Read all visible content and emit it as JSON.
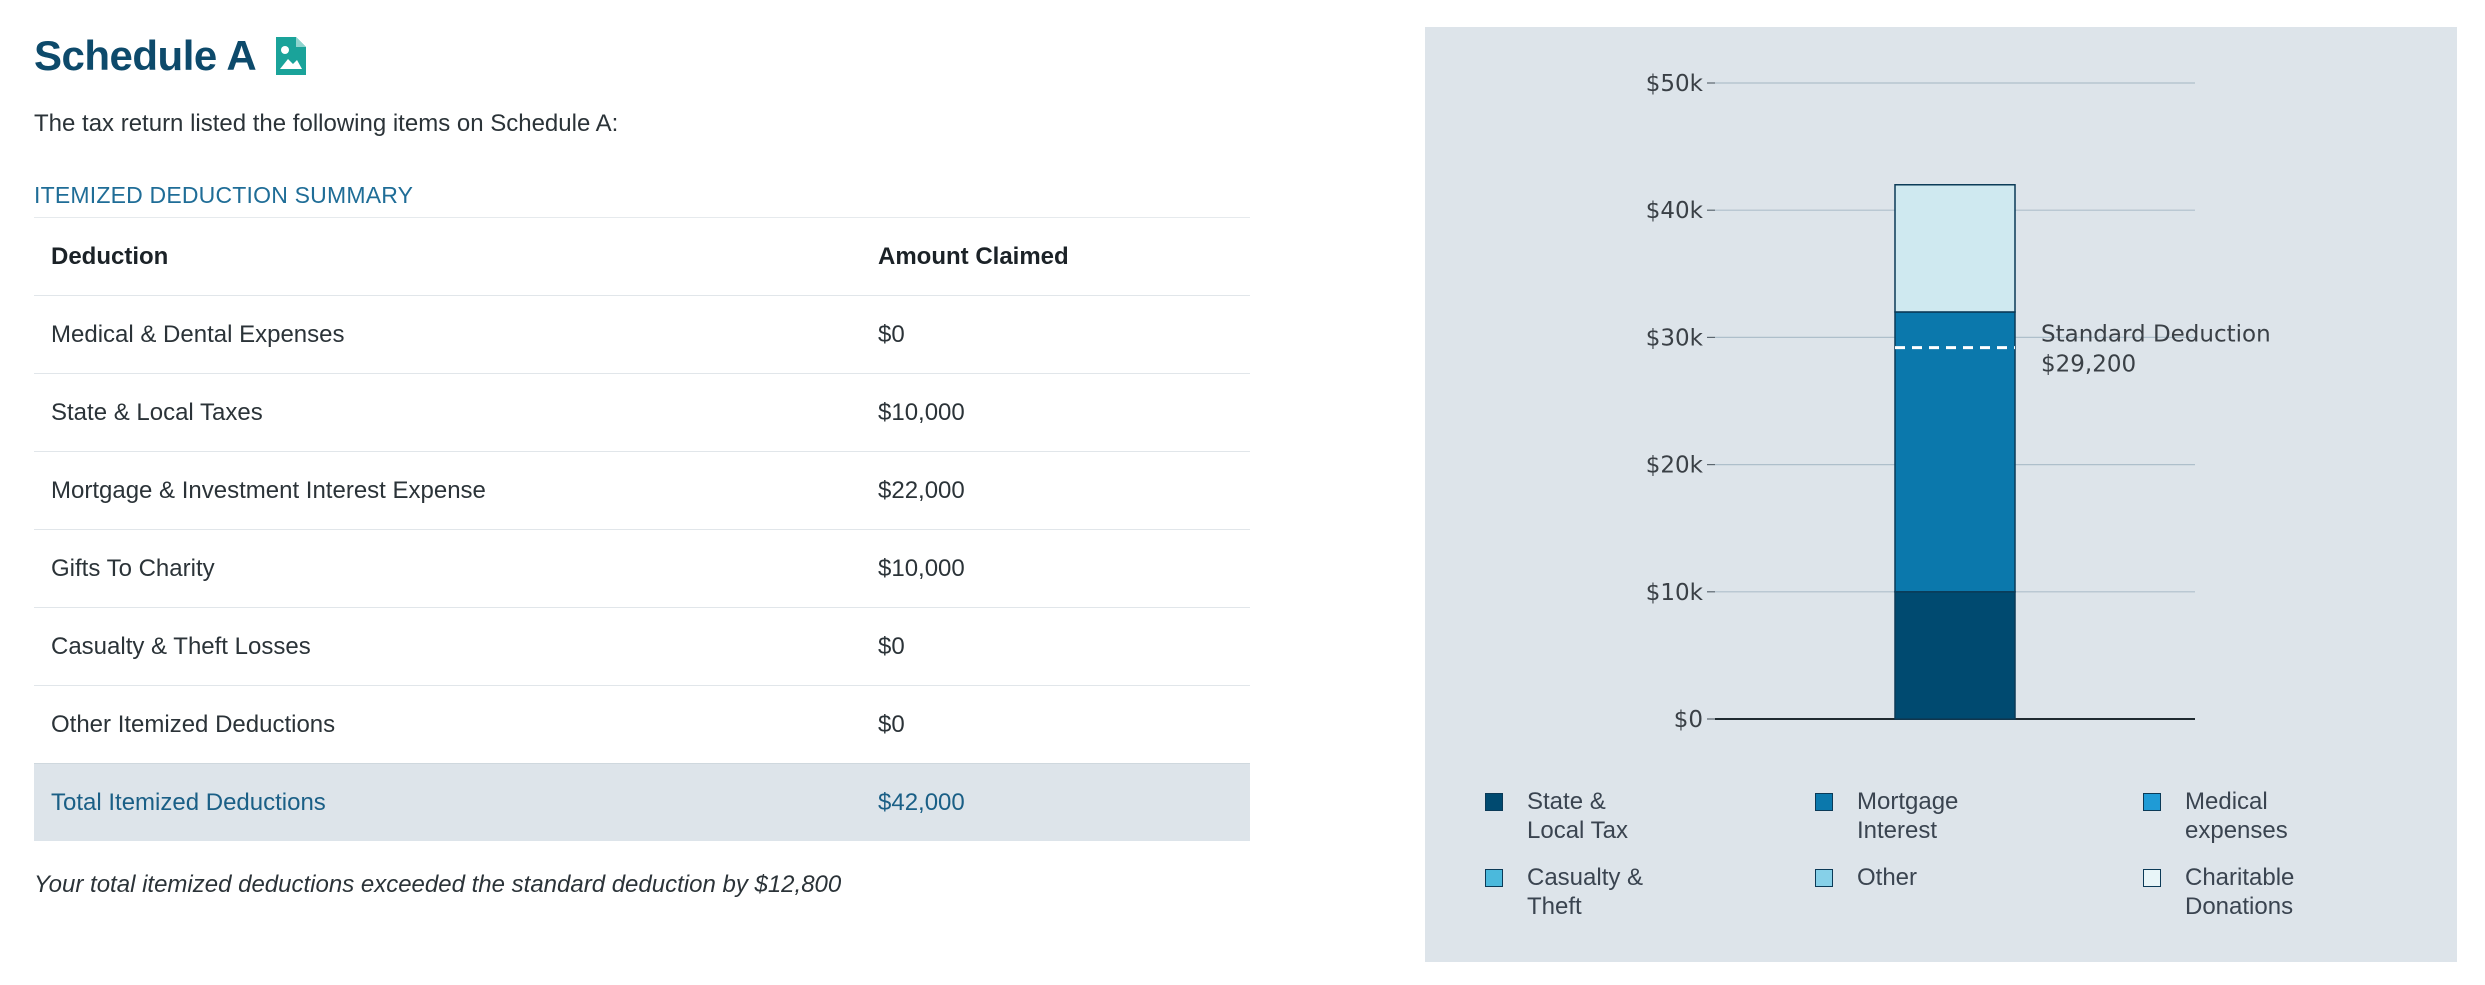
{
  "header": {
    "title": "Schedule A",
    "icon": "document-image-icon",
    "subtitle": "The tax return listed the following items on Schedule A:",
    "section_label": "ITEMIZED DEDUCTION SUMMARY"
  },
  "table": {
    "columns": [
      "Deduction",
      "Amount Claimed"
    ],
    "rows": [
      [
        "Medical & Dental Expenses",
        "$0"
      ],
      [
        "State & Local Taxes",
        "$10,000"
      ],
      [
        "Mortgage & Investment Interest Expense",
        "$22,000"
      ],
      [
        "Gifts To Charity",
        "$10,000"
      ],
      [
        "Casualty & Theft Losses",
        "$0"
      ],
      [
        "Other Itemized Deductions",
        "$0"
      ]
    ],
    "total": [
      "Total Itemized Deductions",
      "$42,000"
    ]
  },
  "footnote": "Your total itemized deductions exceeded the standard deduction by $12,800",
  "colors": {
    "title": "#0d4a6b",
    "icon": "#1aa39a",
    "panel_bg": "#dde4ea",
    "total_row_bg": "#dde4ea"
  },
  "chart_data": {
    "type": "bar",
    "stacked": true,
    "categories": [
      ""
    ],
    "series": [
      {
        "name": "State & Local Tax",
        "values": [
          10000
        ],
        "color": "#004a70"
      },
      {
        "name": "Mortgage Interest",
        "values": [
          22000
        ],
        "color": "#0b78ac"
      },
      {
        "name": "Medical expenses",
        "values": [
          0
        ],
        "color": "#1f9bd6"
      },
      {
        "name": "Casualty & Theft",
        "values": [
          0
        ],
        "color": "#4bb9dc"
      },
      {
        "name": "Other",
        "values": [
          0
        ],
        "color": "#86d0e8"
      },
      {
        "name": "Charitable Donations",
        "values": [
          10000
        ],
        "color": "#cfe9f0"
      }
    ],
    "ylim": [
      0,
      50000
    ],
    "yticks": [
      0,
      10000,
      20000,
      30000,
      40000,
      50000
    ],
    "ytick_labels": [
      "$0",
      "$10k",
      "$20k",
      "$30k",
      "$40k",
      "$50k"
    ],
    "grid": true,
    "reference_line": {
      "value": 29200,
      "label": "Standard Deduction",
      "value_label": "$29,200",
      "style": "dashed"
    },
    "legend": {
      "placement": "bottom",
      "items": [
        {
          "label": "State &\nLocal Tax",
          "color": "#004a70"
        },
        {
          "label": "Mortgage\nInterest",
          "color": "#0b78ac"
        },
        {
          "label": "Medical\nexpenses",
          "color": "#1f9bd6"
        },
        {
          "label": "Casualty &\nTheft",
          "color": "#4bb9dc"
        },
        {
          "label": "Other",
          "color": "#86d0e8"
        },
        {
          "label": "Charitable\nDonations",
          "color": "#e8f5f8"
        }
      ]
    }
  }
}
